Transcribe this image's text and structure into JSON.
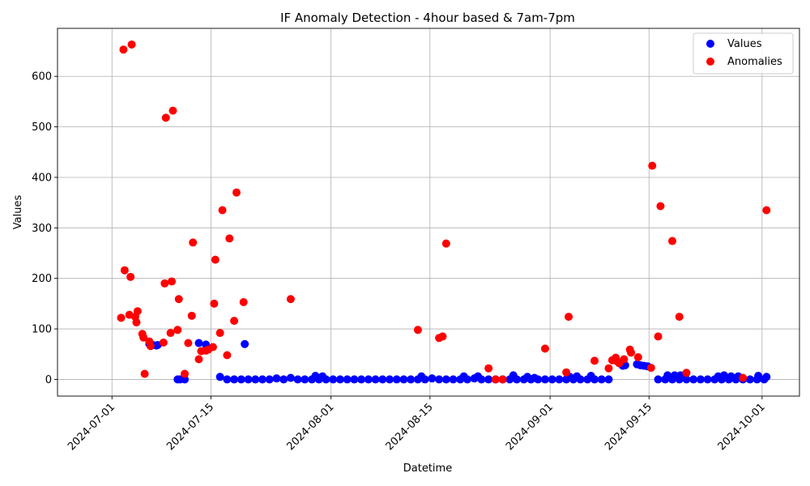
{
  "chart_data": {
    "type": "scatter",
    "title": "IF Anomaly Detection - 4hour based & 7am-7pm",
    "xlabel": "Datetime",
    "ylabel": "Values",
    "grid": true,
    "legend_position": "top-right",
    "x_ticks": [
      "2024-07-01",
      "2024-07-15",
      "2024-08-01",
      "2024-08-15",
      "2024-09-01",
      "2024-09-15",
      "2024-10-01"
    ],
    "y_ticks": [
      0,
      100,
      200,
      300,
      400,
      500,
      600
    ],
    "xlim": [
      "2024-06-23T07:00",
      "2024-10-06T07:00"
    ],
    "ylim": [
      -33,
      695
    ],
    "series": [
      {
        "name": "Values",
        "color": "#0000ff",
        "points": [
          [
            "2024-07-06T07",
            70
          ],
          [
            "2024-07-06T19",
            68
          ],
          [
            "2024-07-07T07",
            67
          ],
          [
            "2024-07-07T11",
            68
          ],
          [
            "2024-07-10T07",
            0
          ],
          [
            "2024-07-10T15",
            0
          ],
          [
            "2024-07-11T07",
            0
          ],
          [
            "2024-07-13T07",
            72
          ],
          [
            "2024-07-14T07",
            69
          ],
          [
            "2024-07-16T07",
            5
          ],
          [
            "2024-07-17T07",
            0
          ],
          [
            "2024-07-18T07",
            0
          ],
          [
            "2024-07-19T07",
            0
          ],
          [
            "2024-07-19T19",
            70
          ],
          [
            "2024-07-20T07",
            0
          ],
          [
            "2024-07-21T07",
            0
          ],
          [
            "2024-07-22T07",
            0
          ],
          [
            "2024-07-23T07",
            0
          ],
          [
            "2024-07-24T07",
            2
          ],
          [
            "2024-07-25T07",
            0
          ],
          [
            "2024-07-26T07",
            3
          ],
          [
            "2024-07-27T07",
            0
          ],
          [
            "2024-07-28T07",
            0
          ],
          [
            "2024-07-29T07",
            0
          ],
          [
            "2024-07-29T19",
            7
          ],
          [
            "2024-07-30T07",
            0
          ],
          [
            "2024-07-30T19",
            6
          ],
          [
            "2024-07-31T07",
            0
          ],
          [
            "2024-08-01T07",
            0
          ],
          [
            "2024-08-02T07",
            0
          ],
          [
            "2024-08-03T07",
            0
          ],
          [
            "2024-08-04T07",
            0
          ],
          [
            "2024-08-05T07",
            0
          ],
          [
            "2024-08-06T07",
            0
          ],
          [
            "2024-08-07T07",
            0
          ],
          [
            "2024-08-08T07",
            0
          ],
          [
            "2024-08-09T07",
            0
          ],
          [
            "2024-08-10T07",
            0
          ],
          [
            "2024-08-11T07",
            0
          ],
          [
            "2024-08-12T07",
            0
          ],
          [
            "2024-08-13T07",
            0
          ],
          [
            "2024-08-13T19",
            6
          ],
          [
            "2024-08-14T07",
            0
          ],
          [
            "2024-08-15T07",
            2
          ],
          [
            "2024-08-16T07",
            0
          ],
          [
            "2024-08-17T07",
            0
          ],
          [
            "2024-08-18T07",
            0
          ],
          [
            "2024-08-19T07",
            0
          ],
          [
            "2024-08-19T19",
            6
          ],
          [
            "2024-08-20T07",
            0
          ],
          [
            "2024-08-21T07",
            2
          ],
          [
            "2024-08-21T19",
            6
          ],
          [
            "2024-08-22T07",
            0
          ],
          [
            "2024-08-23T07",
            0
          ],
          [
            "2024-08-24T07",
            0
          ],
          [
            "2024-08-25T07",
            0
          ],
          [
            "2024-08-26T07",
            0
          ],
          [
            "2024-08-26T19",
            8
          ],
          [
            "2024-08-27T07",
            0
          ],
          [
            "2024-08-28T07",
            0
          ],
          [
            "2024-08-28T19",
            5
          ],
          [
            "2024-08-29T07",
            0
          ],
          [
            "2024-08-29T19",
            3
          ],
          [
            "2024-08-30T07",
            0
          ],
          [
            "2024-08-31T07",
            0
          ],
          [
            "2024-09-01T07",
            0
          ],
          [
            "2024-09-02T07",
            0
          ],
          [
            "2024-09-03T07",
            0
          ],
          [
            "2024-09-03T19",
            5
          ],
          [
            "2024-09-04T07",
            0
          ],
          [
            "2024-09-04T19",
            6
          ],
          [
            "2024-09-05T07",
            0
          ],
          [
            "2024-09-06T07",
            0
          ],
          [
            "2024-09-06T19",
            7
          ],
          [
            "2024-09-07T07",
            0
          ],
          [
            "2024-09-08T07",
            0
          ],
          [
            "2024-09-09T07",
            0
          ],
          [
            "2024-09-11T07",
            27
          ],
          [
            "2024-09-11T15",
            28
          ],
          [
            "2024-09-13T07",
            30
          ],
          [
            "2024-09-13T19",
            28
          ],
          [
            "2024-09-14T07",
            27
          ],
          [
            "2024-09-14T19",
            26
          ],
          [
            "2024-09-16T07",
            0
          ],
          [
            "2024-09-17T07",
            0
          ],
          [
            "2024-09-17T15",
            8
          ],
          [
            "2024-09-18T07",
            0
          ],
          [
            "2024-09-18T15",
            8
          ],
          [
            "2024-09-19T07",
            0
          ],
          [
            "2024-09-19T11",
            8
          ],
          [
            "2024-09-20T07",
            0
          ],
          [
            "2024-09-21T07",
            0
          ],
          [
            "2024-09-22T07",
            0
          ],
          [
            "2024-09-23T07",
            0
          ],
          [
            "2024-09-24T07",
            0
          ],
          [
            "2024-09-24T19",
            6
          ],
          [
            "2024-09-25T07",
            0
          ],
          [
            "2024-09-25T15",
            8
          ],
          [
            "2024-09-26T07",
            0
          ],
          [
            "2024-09-26T15",
            6
          ],
          [
            "2024-09-27T07",
            0
          ],
          [
            "2024-09-27T15",
            6
          ],
          [
            "2024-09-28T07",
            0
          ],
          [
            "2024-09-29T07",
            0
          ],
          [
            "2024-09-30T07",
            0
          ],
          [
            "2024-09-30T11",
            7
          ],
          [
            "2024-10-01T07",
            0
          ],
          [
            "2024-10-01T15",
            5
          ]
        ]
      },
      {
        "name": "Anomalies",
        "color": "#ff0000",
        "points": [
          [
            "2024-07-02T07",
            122
          ],
          [
            "2024-07-02T15",
            653
          ],
          [
            "2024-07-02T19",
            216
          ],
          [
            "2024-07-03T11",
            128
          ],
          [
            "2024-07-03T15",
            203
          ],
          [
            "2024-07-03T19",
            663
          ],
          [
            "2024-07-04T07",
            124
          ],
          [
            "2024-07-04T11",
            113
          ],
          [
            "2024-07-04T15",
            135
          ],
          [
            "2024-07-05T07",
            90
          ],
          [
            "2024-07-05T11",
            83
          ],
          [
            "2024-07-05T15",
            11
          ],
          [
            "2024-07-06T07",
            75
          ],
          [
            "2024-07-06T11",
            66
          ],
          [
            "2024-07-08T07",
            73
          ],
          [
            "2024-07-08T11",
            190
          ],
          [
            "2024-07-08T15",
            518
          ],
          [
            "2024-07-09T07",
            92
          ],
          [
            "2024-07-09T11",
            194
          ],
          [
            "2024-07-09T15",
            532
          ],
          [
            "2024-07-10T07",
            98
          ],
          [
            "2024-07-10T11",
            159
          ],
          [
            "2024-07-11T07",
            11
          ],
          [
            "2024-07-11T19",
            72
          ],
          [
            "2024-07-12T07",
            126
          ],
          [
            "2024-07-12T11",
            271
          ],
          [
            "2024-07-13T07",
            40
          ],
          [
            "2024-07-13T15",
            56
          ],
          [
            "2024-07-14T07",
            57
          ],
          [
            "2024-07-14T15",
            59
          ],
          [
            "2024-07-15T07",
            64
          ],
          [
            "2024-07-15T11",
            150
          ],
          [
            "2024-07-15T15",
            237
          ],
          [
            "2024-07-16T07",
            92
          ],
          [
            "2024-07-16T15",
            335
          ],
          [
            "2024-07-17T07",
            48
          ],
          [
            "2024-07-17T15",
            279
          ],
          [
            "2024-07-18T07",
            116
          ],
          [
            "2024-07-18T15",
            370
          ],
          [
            "2024-07-19T15",
            153
          ],
          [
            "2024-07-26T07",
            159
          ],
          [
            "2024-08-13T07",
            98
          ],
          [
            "2024-08-16T07",
            82
          ],
          [
            "2024-08-16T19",
            85
          ],
          [
            "2024-08-17T07",
            269
          ],
          [
            "2024-08-23T07",
            22
          ],
          [
            "2024-08-24T07",
            0
          ],
          [
            "2024-08-25T07",
            0
          ],
          [
            "2024-08-31T07",
            61
          ],
          [
            "2024-09-03T07",
            14
          ],
          [
            "2024-09-03T15",
            124
          ],
          [
            "2024-09-07T07",
            37
          ],
          [
            "2024-09-09T07",
            22
          ],
          [
            "2024-09-09T19",
            38
          ],
          [
            "2024-09-10T07",
            43
          ],
          [
            "2024-09-10T11",
            36
          ],
          [
            "2024-09-10T19",
            32
          ],
          [
            "2024-09-11T11",
            40
          ],
          [
            "2024-09-12T07",
            59
          ],
          [
            "2024-09-12T11",
            53
          ],
          [
            "2024-09-13T11",
            44
          ],
          [
            "2024-09-15T07",
            23
          ],
          [
            "2024-09-15T11",
            423
          ],
          [
            "2024-09-16T07",
            85
          ],
          [
            "2024-09-16T15",
            343
          ],
          [
            "2024-09-18T07",
            274
          ],
          [
            "2024-09-19T07",
            124
          ],
          [
            "2024-09-20T07",
            13
          ],
          [
            "2024-09-28T07",
            3
          ],
          [
            "2024-10-01T15",
            335
          ]
        ]
      }
    ]
  }
}
